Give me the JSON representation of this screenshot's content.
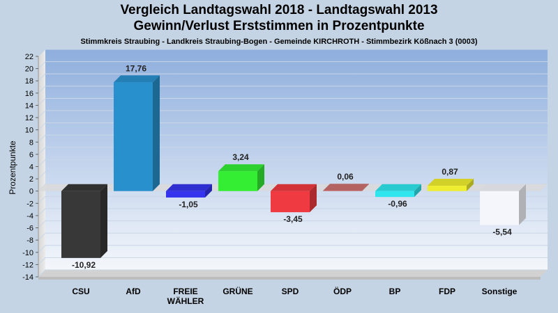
{
  "chart_data": {
    "type": "bar",
    "title": "Vergleich Landtagswahl 2018 - Landtagswahl 2013",
    "subtitle": "Gewinn/Verlust Erststimmen in Prozentpunkte",
    "caption": "Stimmkreis Straubing - Landkreis Straubing-Bogen - Gemeinde KIRCHROTH - Stimmbezirk Kößnach 3 (0003)",
    "ylabel": "Prozentpunkte",
    "xlabel": "",
    "ylim": [
      -14,
      22
    ],
    "yticks": [
      22,
      20,
      18,
      16,
      14,
      12,
      10,
      8,
      6,
      4,
      2,
      0,
      -2,
      -4,
      -6,
      -8,
      -10,
      -12,
      -14
    ],
    "grid": true,
    "categories": [
      "CSU",
      "AfD",
      "FREIE WÄHLER",
      "GRÜNE",
      "SPD",
      "ÖDP",
      "BP",
      "FDP",
      "Sonstige"
    ],
    "category_lines": [
      [
        "CSU"
      ],
      [
        "AfD"
      ],
      [
        "FREIE",
        "WÄHLER"
      ],
      [
        "GRÜNE"
      ],
      [
        "SPD"
      ],
      [
        "ÖDP"
      ],
      [
        "BP"
      ],
      [
        "FDP"
      ],
      [
        "Sonstige"
      ]
    ],
    "values": [
      -10.92,
      17.76,
      -1.05,
      3.24,
      -3.45,
      0.06,
      -0.96,
      0.87,
      -5.54
    ],
    "value_labels": [
      "-10,92",
      "17,76",
      "-1,05",
      "3,24",
      "-3,45",
      "0,06",
      "-0,96",
      "0,87",
      "-5,54"
    ],
    "colors": [
      "#383838",
      "#2890cc",
      "#3434ee",
      "#33ee33",
      "#ee3a40",
      "#cc7070",
      "#30e6ee",
      "#eeee30",
      "#f4f6fc"
    ]
  }
}
